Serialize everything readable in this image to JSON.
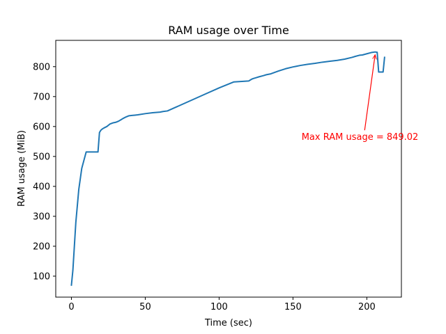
{
  "chart_data": {
    "type": "line",
    "title": "RAM usage over Time",
    "xlabel": "Time (sec)",
    "ylabel": "RAM usage (MiB)",
    "xlim": [
      -10.6,
      223.4
    ],
    "ylim": [
      30,
      887.8
    ],
    "xticks": [
      0,
      50,
      100,
      150,
      200
    ],
    "yticks": [
      100,
      200,
      300,
      400,
      500,
      600,
      700,
      800
    ],
    "grid": false,
    "line_color": "#1f77b4",
    "annotation_color": "#ff0000",
    "annotation": {
      "text": "Max RAM usage = 849.02",
      "point": [
        205.6,
        849.02
      ],
      "text_anchor_data": [
        155.8,
        555
      ]
    },
    "series": [
      {
        "x": [
          0,
          1,
          2,
          3,
          5,
          7,
          10,
          12,
          14,
          16,
          18,
          19,
          20,
          21,
          22,
          24,
          26,
          28,
          30,
          32,
          34,
          35,
          37,
          39,
          41,
          43,
          45,
          50,
          55,
          60,
          62,
          65,
          70,
          80,
          90,
          100,
          110,
          120,
          121,
          122,
          123,
          125,
          127,
          130,
          132,
          135,
          140,
          145,
          150,
          152,
          155,
          160,
          165,
          170,
          175,
          180,
          185,
          190,
          192,
          195,
          197,
          200,
          203,
          205.6,
          207,
          208,
          209,
          210,
          211,
          212
        ],
        "y": [
          70,
          120,
          200,
          280,
          390,
          460,
          515,
          515,
          515,
          515,
          515,
          580,
          588,
          592,
          595,
          600,
          608,
          612,
          614,
          618,
          624,
          627,
          632,
          636,
          637,
          638,
          639,
          643,
          646,
          648,
          650,
          652,
          663,
          685,
          707,
          729,
          749,
          752,
          755,
          758,
          760,
          763,
          766,
          770,
          773,
          776,
          785,
          793,
          799,
          801,
          804,
          808,
          811,
          815,
          818,
          821,
          825,
          831,
          834,
          838,
          839,
          843,
          847,
          849.02,
          848,
          782,
          782,
          782,
          782,
          831
        ]
      }
    ]
  }
}
